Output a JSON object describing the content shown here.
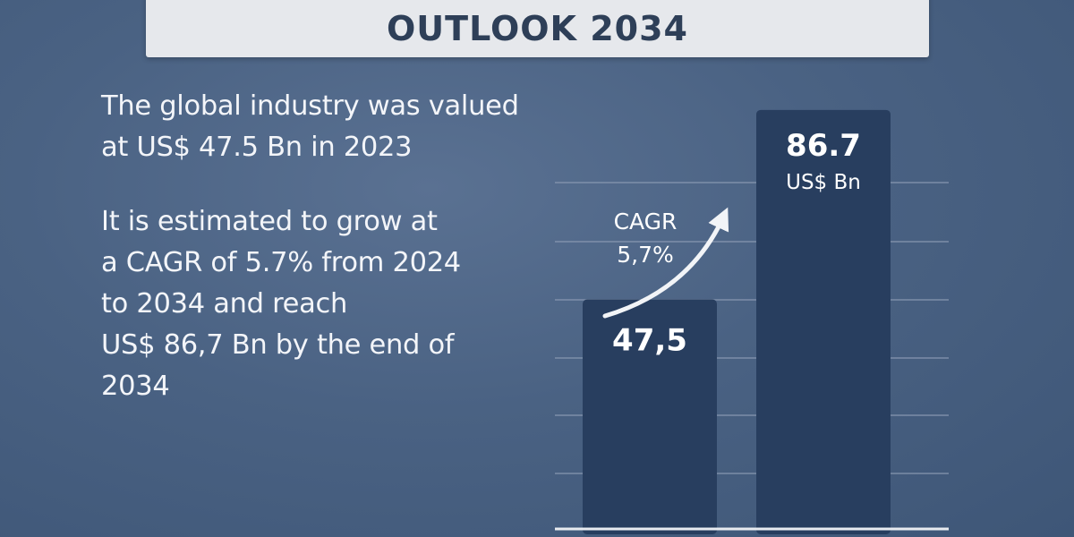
{
  "header": {
    "title": "OUTLOOK 2034"
  },
  "summary": {
    "paragraph1": [
      "The global industry was valued",
      "at US$ 47.5 Bn in 2023"
    ],
    "paragraph2": [
      "It is estimated to grow at",
      "a CAGR of 5.7% from 2024",
      "to 2034 and reach",
      "US$ 86,7 Bn by the end of",
      "2034"
    ]
  },
  "chart_data": {
    "type": "bar",
    "values": [
      47.5,
      86.7
    ],
    "value_labels": [
      "47,5",
      "86.7"
    ],
    "unit_label": "US$ Bn",
    "annotation": {
      "line1": "CAGR",
      "line2": "5,7%"
    },
    "ylim": [
      0,
      100
    ],
    "grid": true,
    "colors": {
      "bar": "#283e5f",
      "grid": "#8a9ab3",
      "baseline": "#e8ebf0",
      "arrow": "#f2f4f7"
    }
  }
}
